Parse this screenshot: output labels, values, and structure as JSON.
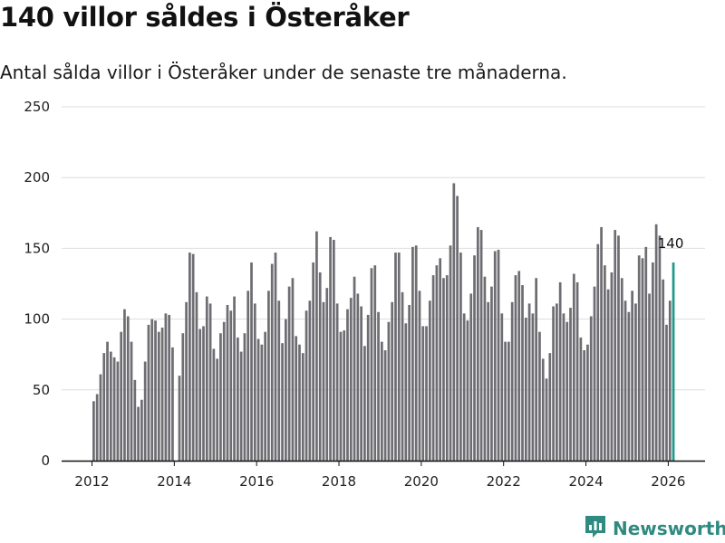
{
  "title": "140 villor såldes i Österåker",
  "subtitle": "Antal sålda villor i Österåker under de senaste tre månaderna.",
  "brand": {
    "name": "Newsworthy",
    "icon": "newsworthy-logo-icon",
    "color": "#2f8a80"
  },
  "colors": {
    "bar": "#6e6d72",
    "highlight": "#1f9a8a",
    "grid": "#dddddd",
    "axis": "#111111"
  },
  "chart_data": {
    "type": "bar",
    "title": "140 villor såldes i Österåker",
    "xlabel": "",
    "ylabel": "",
    "ylim": [
      0,
      250
    ],
    "yticks": [
      0,
      50,
      100,
      150,
      200,
      250
    ],
    "xticks": [
      "2012",
      "2014",
      "2016",
      "2018",
      "2020",
      "2022",
      "2024",
      "2026"
    ],
    "start": "2012-01",
    "frequency": "monthly",
    "highlight_last": true,
    "last_value_label": "140",
    "values": [
      42,
      47,
      61,
      76,
      84,
      77,
      73,
      70,
      91,
      107,
      102,
      84,
      57,
      38,
      43,
      70,
      96,
      100,
      99,
      91,
      94,
      104,
      103,
      80,
      0,
      60,
      90,
      112,
      147,
      146,
      119,
      93,
      95,
      116,
      111,
      79,
      72,
      90,
      98,
      110,
      106,
      116,
      87,
      77,
      90,
      120,
      140,
      111,
      86,
      82,
      91,
      120,
      139,
      147,
      113,
      83,
      100,
      123,
      129,
      88,
      82,
      76,
      106,
      113,
      140,
      162,
      133,
      112,
      122,
      158,
      156,
      111,
      91,
      92,
      107,
      115,
      130,
      118,
      109,
      81,
      103,
      136,
      138,
      105,
      84,
      78,
      98,
      112,
      147,
      147,
      119,
      97,
      110,
      151,
      152,
      120,
      95,
      95,
      113,
      131,
      138,
      143,
      129,
      131,
      152,
      196,
      187,
      147,
      104,
      99,
      118,
      145,
      165,
      163,
      130,
      112,
      123,
      148,
      149,
      104,
      84,
      84,
      112,
      131,
      134,
      124,
      101,
      111,
      104,
      129,
      91,
      72,
      58,
      76,
      109,
      111,
      126,
      104,
      98,
      108,
      132,
      126,
      87,
      78,
      82,
      102,
      123,
      153,
      165,
      138,
      121,
      133,
      163,
      159,
      129,
      113,
      105,
      120,
      111,
      145,
      143,
      151,
      118,
      140,
      167,
      159,
      128,
      96,
      113,
      140
    ]
  }
}
